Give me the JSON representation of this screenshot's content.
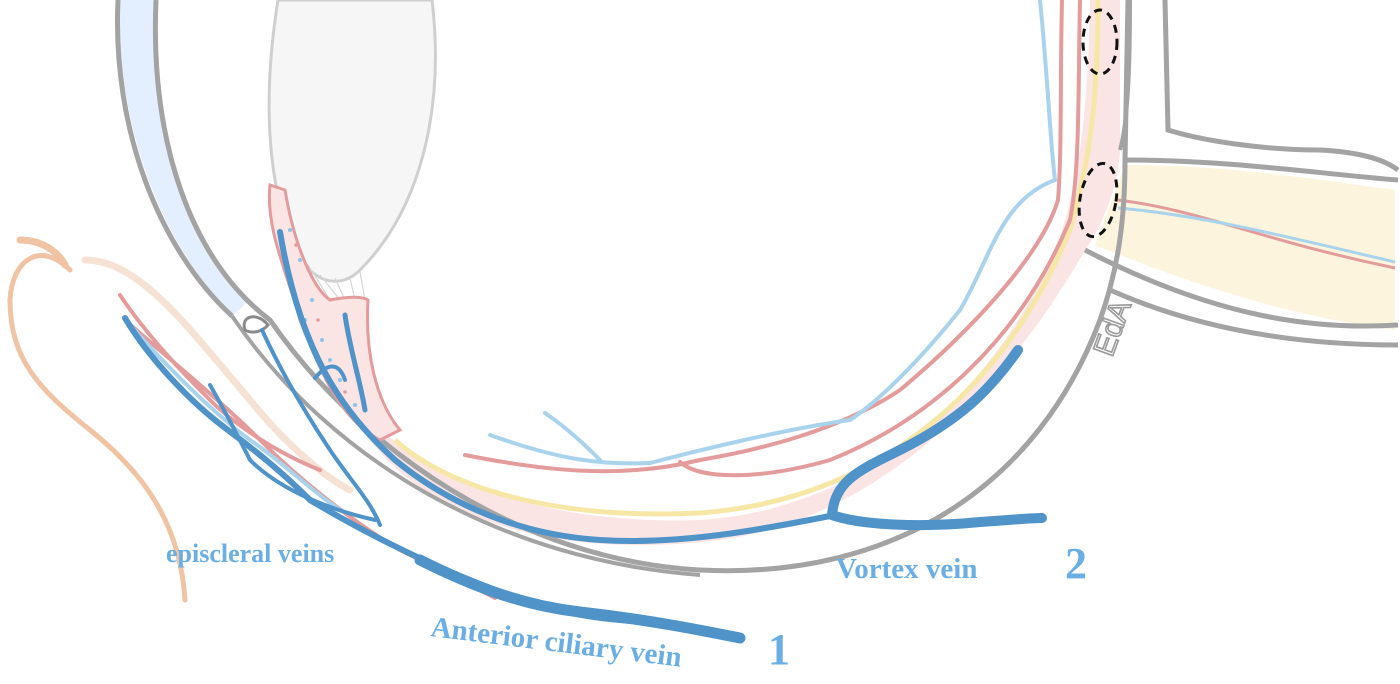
{
  "labels": {
    "episcleral_veins": "episcleral veins",
    "vortex_vein": "Vortex vein",
    "anterior_ciliary_vein": "Anterior ciliary vein",
    "number_1": "1",
    "number_2": "2",
    "signature": "EdA"
  },
  "colors": {
    "label": "#6aaee4",
    "vein_dark": "#4f93c9",
    "vein_light": "#a9d3ec",
    "artery_red": "#e39b9b",
    "sclera_gray": "#a3a3a3",
    "cornea_fill": "#e3efff",
    "choroid_pink": "#fbe4e4",
    "retina_yellow": "#f6e7a6",
    "optic_nerve_fill": "#fcf4dc",
    "conjunctiva_peach": "#efc3a4",
    "lens_gray": "#cfcfcf"
  }
}
